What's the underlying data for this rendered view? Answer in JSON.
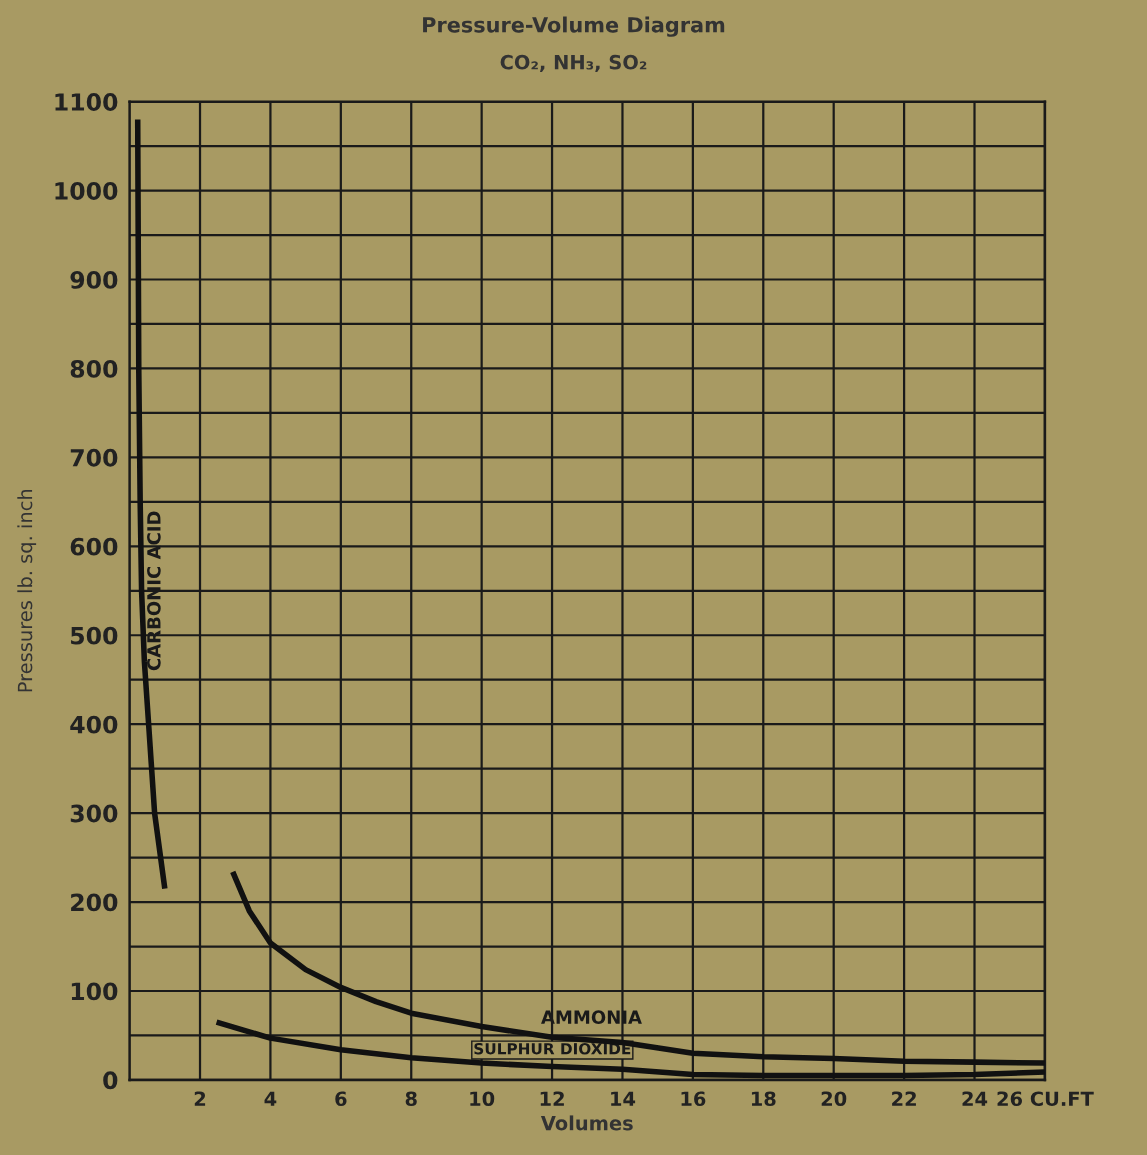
{
  "chart_data": {
    "type": "line",
    "title": "Pressure-Volume Diagram",
    "subtitle": "CO₂, NH₃, SO₂",
    "xlabel": "Volumes",
    "ylabel": "Pressures lb. sq. inch",
    "series": [
      {
        "name": "CARBONIC ACID",
        "color": "#111111",
        "x": [
          0.23,
          0.26,
          0.3,
          0.34,
          0.42,
          0.54,
          0.71,
          1.0
        ],
        "values": [
          1080,
          800,
          650,
          550,
          470,
          400,
          300,
          215
        ]
      },
      {
        "name": "AMMONIA",
        "color": "#111111",
        "x": [
          2.93,
          3.4,
          4,
          5,
          6,
          7,
          8,
          10,
          12,
          14,
          16,
          18,
          20,
          22,
          24,
          26
        ],
        "values": [
          234,
          190,
          154,
          124,
          104,
          88,
          75,
          60,
          48,
          42,
          30,
          26,
          24,
          21,
          20,
          19
        ]
      },
      {
        "name": "SULPHUR DIOXIDE",
        "color": "#111111",
        "x": [
          2.47,
          4,
          6,
          8,
          10,
          12,
          14,
          16,
          18,
          20,
          22,
          24,
          26
        ],
        "values": [
          65,
          47,
          34,
          25,
          19,
          15,
          12,
          6,
          5,
          5,
          5,
          6,
          9
        ]
      }
    ],
    "xlim": [
      0,
      26
    ],
    "ylim": [
      0,
      1100
    ],
    "xticks": [
      2,
      4,
      6,
      8,
      10,
      12,
      14,
      16,
      18,
      20,
      22,
      24,
      {
        "value": 26,
        "label": "26 CU.FT"
      }
    ],
    "yticks": [
      0,
      {
        "value": 50,
        "label": null
      },
      100,
      {
        "value": 150,
        "label": null
      },
      200,
      {
        "value": 250,
        "label": null
      },
      300,
      {
        "value": 350,
        "label": null
      },
      400,
      {
        "value": 450,
        "label": null
      },
      500,
      {
        "value": 550,
        "label": null
      },
      600,
      {
        "value": 650,
        "label": null
      },
      700,
      {
        "value": 750,
        "label": null
      },
      800,
      {
        "value": 850,
        "label": null
      },
      900,
      {
        "value": 950,
        "label": null
      },
      1000,
      {
        "value": 1050,
        "label": null
      },
      1100
    ],
    "grid": true,
    "marker": "none",
    "line_style": "solid",
    "legend": false
  }
}
